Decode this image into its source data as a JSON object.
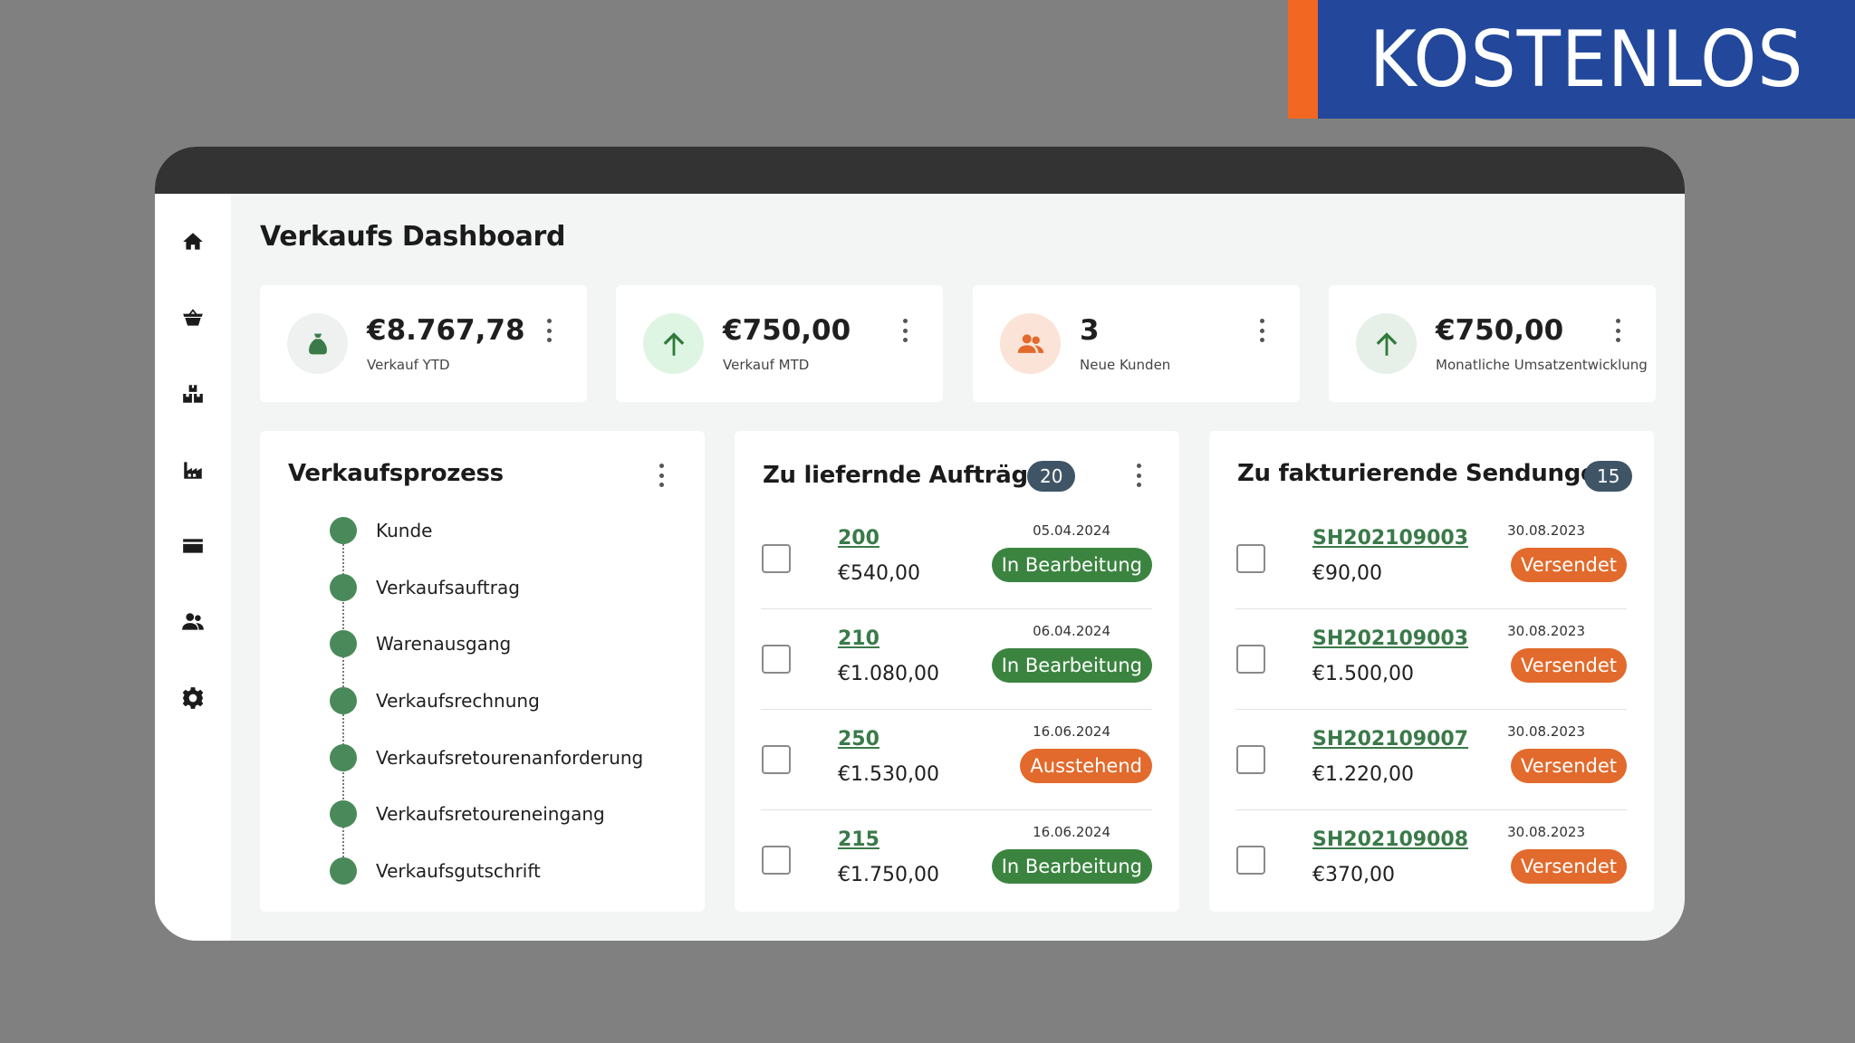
{
  "banner": {
    "text": "KOSTENLOS",
    "accent_color": "#f26722",
    "bg_color": "#22479b"
  },
  "sidebar": {
    "items": [
      {
        "icon": "home-icon"
      },
      {
        "icon": "basket-icon"
      },
      {
        "icon": "boxes-icon"
      },
      {
        "icon": "factory-icon"
      },
      {
        "icon": "card-icon"
      },
      {
        "icon": "people-icon"
      },
      {
        "icon": "gear-icon"
      }
    ]
  },
  "header": {
    "title": "Verkaufs Dashboard"
  },
  "kpis": [
    {
      "value": "€8.767,78",
      "label": "Verkauf YTD",
      "icon": "money-bag-icon",
      "icon_bg": "#eef1ef"
    },
    {
      "value": "€750,00",
      "label": "Verkauf MTD",
      "icon": "arrow-up-icon",
      "icon_bg": "#dff5e3"
    },
    {
      "value": "3",
      "label": "Neue Kunden",
      "icon": "customers-icon",
      "icon_bg": "#fbe3d8"
    },
    {
      "value": "€750,00",
      "label": "Monatliche Umsatzentwicklung",
      "icon": "arrow-up-icon",
      "icon_bg": "#e6efe8"
    }
  ],
  "process": {
    "title": "Verkaufsprozess",
    "steps": [
      "Kunde",
      "Verkaufsauftrag",
      "Warenausgang",
      "Verkaufsrechnung",
      "Verkaufsretourenanforderung",
      "Verkaufsretoureneingang",
      "Verkaufsgutschrift"
    ]
  },
  "orders": {
    "title": "Zu liefernde Aufträge",
    "count": "20",
    "rows": [
      {
        "id": "200",
        "amount": "€540,00",
        "date": "05.04.2024",
        "status": "In Bearbeitung"
      },
      {
        "id": "210",
        "amount": "€1.080,00",
        "date": "06.04.2024",
        "status": "In Bearbeitung"
      },
      {
        "id": "250",
        "amount": "€1.530,00",
        "date": "16.06.2024",
        "status": "Ausstehend"
      },
      {
        "id": "215",
        "amount": "€1.750,00",
        "date": "16.06.2024",
        "status": "In Bearbeitung"
      }
    ]
  },
  "shipments": {
    "title": "Zu fakturierende Sendungen",
    "count": "15",
    "rows": [
      {
        "id": "SH202109003",
        "amount": "€90,00",
        "date": "30.08.2023",
        "status": "Versendet"
      },
      {
        "id": "SH202109003",
        "amount": "€1.500,00",
        "date": "30.08.2023",
        "status": "Versendet"
      },
      {
        "id": "SH202109007",
        "amount": "€1.220,00",
        "date": "30.08.2023",
        "status": "Versendet"
      },
      {
        "id": "SH202109008",
        "amount": "€370,00",
        "date": "30.08.2023",
        "status": "Versendet"
      }
    ]
  },
  "colors": {
    "green_status": "#3b8440",
    "orange_status": "#e26a2c",
    "link": "#3a7a49",
    "step_dot": "#4a8a5a"
  }
}
